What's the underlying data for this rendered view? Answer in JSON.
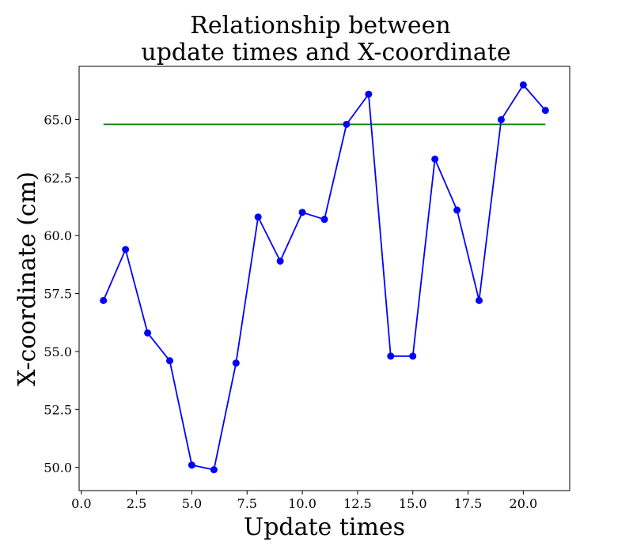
{
  "chart_data": {
    "type": "line",
    "title_lines": [
      "Relationship between",
      "update times and X-coordinate"
    ],
    "xlabel": "Update times",
    "ylabel": "X-coordinate (cm)",
    "xlim": [
      -0.1,
      22.1
    ],
    "ylim": [
      49.0,
      67.3
    ],
    "xticks": [
      0.0,
      2.5,
      5.0,
      7.5,
      10.0,
      12.5,
      15.0,
      17.5,
      20.0
    ],
    "xtick_labels": [
      "0.0",
      "2.5",
      "5.0",
      "7.5",
      "10.0",
      "12.5",
      "15.0",
      "17.5",
      "20.0"
    ],
    "yticks": [
      50.0,
      52.5,
      55.0,
      57.5,
      60.0,
      62.5,
      65.0
    ],
    "ytick_labels": [
      "50.0",
      "52.5",
      "55.0",
      "57.5",
      "60.0",
      "62.5",
      "65.0"
    ],
    "grid": false,
    "series": [
      {
        "color": "#0000ff",
        "marker": "circle",
        "x": [
          1,
          2,
          3,
          4,
          5,
          6,
          7,
          8,
          9,
          10,
          11,
          12,
          13,
          14,
          15,
          16,
          17,
          18,
          19,
          20,
          21
        ],
        "y": [
          57.2,
          59.4,
          55.8,
          54.6,
          50.1,
          49.9,
          54.5,
          60.8,
          58.9,
          61.0,
          60.7,
          64.8,
          66.1,
          54.8,
          54.8,
          63.3,
          61.1,
          57.2,
          65.0,
          66.5,
          65.4
        ]
      }
    ],
    "reference_line": {
      "color": "#008000",
      "x": [
        1,
        21
      ],
      "y": [
        64.8,
        64.8
      ]
    }
  }
}
